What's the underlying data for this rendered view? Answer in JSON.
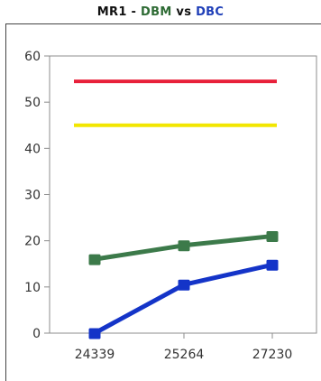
{
  "chart_data": {
    "type": "line",
    "title": {
      "prefix": "MR1 - ",
      "series_a": "DBM",
      "middle": " vs ",
      "series_b": "DBC"
    },
    "categories": [
      "24339",
      "25264",
      "27230"
    ],
    "ylim": [
      0,
      60
    ],
    "y_ticks": [
      "60",
      "50",
      "40",
      "30",
      "20",
      "10",
      "0"
    ],
    "grid": false,
    "series": [
      {
        "key": "red",
        "color": "#e8203a",
        "values": [
          54.5,
          54.5,
          54.5
        ],
        "markers": false
      },
      {
        "key": "yellow",
        "color": "#f2e600",
        "values": [
          45,
          45,
          45
        ],
        "markers": false
      },
      {
        "key": "green",
        "color": "#3c7a4a",
        "values": [
          16,
          19,
          21
        ],
        "markers": true
      },
      {
        "key": "blue",
        "color": "#1434c8",
        "values": [
          0,
          10.5,
          14.8
        ],
        "markers": true
      }
    ]
  }
}
